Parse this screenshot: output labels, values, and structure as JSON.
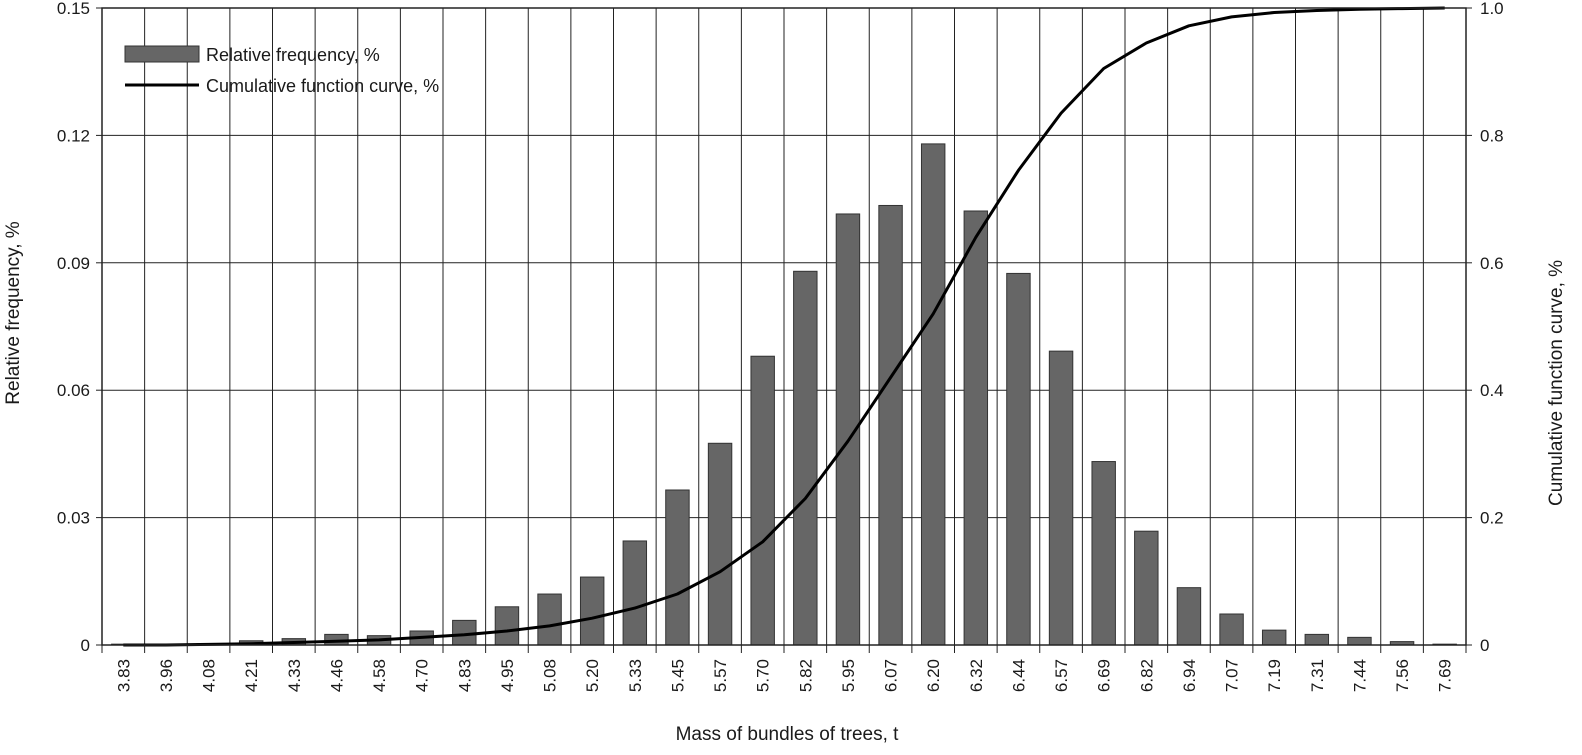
{
  "chart_data": {
    "type": "bar",
    "xlabel": "Mass of bundles of trees, t",
    "ylabel": "Relative frequency, %",
    "y2label": "Cumulative function curve, %",
    "ylim": [
      0,
      0.15
    ],
    "y2lim": [
      0,
      1.0
    ],
    "yticks": [
      "0",
      "0.03",
      "0.06",
      "0.09",
      "0.12",
      "0.15"
    ],
    "y2ticks": [
      "0",
      "0.2",
      "0.4",
      "0.6",
      "0.8",
      "1.0"
    ],
    "categories": [
      "3.83",
      "3.96",
      "4.08",
      "4.21",
      "4.33",
      "4.46",
      "4.58",
      "4.70",
      "4.83",
      "4.95",
      "5.08",
      "5.20",
      "5.33",
      "5.45",
      "5.57",
      "5.70",
      "5.82",
      "5.95",
      "6.07",
      "6.20",
      "6.32",
      "6.44",
      "6.57",
      "6.69",
      "6.82",
      "6.94",
      "7.07",
      "7.19",
      "7.31",
      "7.44",
      "7.56",
      "7.69"
    ],
    "grid": true,
    "legend_position": "top-left",
    "series": [
      {
        "name": "Relative frequency, %",
        "kind": "bar",
        "axis": "left",
        "color": "#666666",
        "values": [
          0.0002,
          0.0002,
          0.0003,
          0.001,
          0.0015,
          0.0025,
          0.0022,
          0.0033,
          0.0058,
          0.009,
          0.012,
          0.016,
          0.0245,
          0.0365,
          0.0475,
          0.068,
          0.088,
          0.1015,
          0.1035,
          0.118,
          0.1022,
          0.0875,
          0.0692,
          0.0432,
          0.0268,
          0.0135,
          0.0073,
          0.0035,
          0.0025,
          0.0018,
          0.0008,
          0.0002
        ]
      },
      {
        "name": "Cumulative function curve, %",
        "kind": "line",
        "axis": "right",
        "color": "#000000",
        "values": [
          0.0,
          0.0,
          0.001,
          0.002,
          0.004,
          0.006,
          0.008,
          0.012,
          0.016,
          0.022,
          0.03,
          0.042,
          0.058,
          0.08,
          0.115,
          0.162,
          0.23,
          0.32,
          0.42,
          0.52,
          0.64,
          0.745,
          0.835,
          0.905,
          0.945,
          0.972,
          0.986,
          0.993,
          0.996,
          0.998,
          0.999,
          1.0
        ]
      }
    ]
  }
}
